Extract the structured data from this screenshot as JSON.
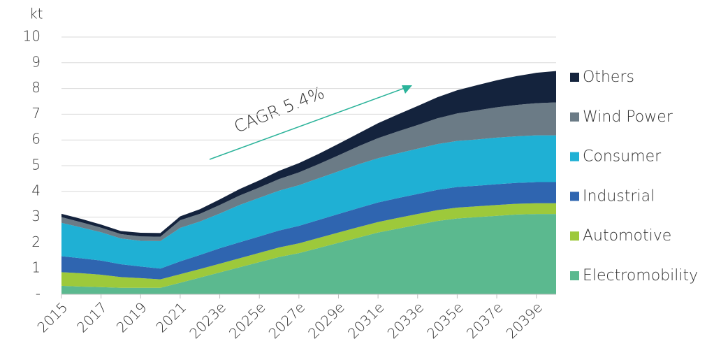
{
  "chart_data": {
    "type": "stacked_area",
    "y_label": "kt",
    "annotation": "CAGR 5.4%",
    "categories": [
      "2015",
      null,
      "2017",
      null,
      "2019",
      null,
      "2021",
      null,
      "2023e",
      null,
      "2025e",
      null,
      "2027e",
      null,
      "2029e",
      null,
      "2031e",
      null,
      "2033e",
      null,
      "2035e",
      null,
      "2037e",
      null,
      "2039e",
      null
    ],
    "series": [
      {
        "name": "Electromobility",
        "color": "#5bb98f",
        "values": [
          0.33,
          0.3,
          0.28,
          0.25,
          0.25,
          0.25,
          0.45,
          0.65,
          0.85,
          1.05,
          1.25,
          1.45,
          1.6,
          1.8,
          2.0,
          2.2,
          2.4,
          2.55,
          2.7,
          2.85,
          2.95,
          3.0,
          3.05,
          3.1,
          3.12,
          3.12
        ]
      },
      {
        "name": "Automotive",
        "color": "#9dc93b",
        "values": [
          0.53,
          0.52,
          0.48,
          0.42,
          0.38,
          0.33,
          0.33,
          0.33,
          0.34,
          0.35,
          0.36,
          0.37,
          0.38,
          0.39,
          0.4,
          0.41,
          0.41,
          0.42,
          0.42,
          0.42,
          0.42,
          0.42,
          0.42,
          0.42,
          0.42,
          0.42
        ]
      },
      {
        "name": "Industrial",
        "color": "#2f65b0",
        "values": [
          0.62,
          0.58,
          0.55,
          0.5,
          0.45,
          0.42,
          0.5,
          0.55,
          0.6,
          0.62,
          0.64,
          0.66,
          0.68,
          0.7,
          0.72,
          0.74,
          0.76,
          0.77,
          0.78,
          0.79,
          0.8,
          0.8,
          0.81,
          0.81,
          0.82,
          0.82
        ]
      },
      {
        "name": "Consumer",
        "color": "#1fb0d4",
        "values": [
          1.3,
          1.2,
          1.1,
          1.0,
          1.0,
          1.07,
          1.3,
          1.3,
          1.35,
          1.45,
          1.5,
          1.55,
          1.58,
          1.62,
          1.66,
          1.7,
          1.72,
          1.74,
          1.76,
          1.78,
          1.79,
          1.8,
          1.81,
          1.81,
          1.82,
          1.82
        ]
      },
      {
        "name": "Wind Power",
        "color": "#6b7b86",
        "values": [
          0.22,
          0.2,
          0.18,
          0.17,
          0.17,
          0.17,
          0.3,
          0.3,
          0.33,
          0.37,
          0.4,
          0.45,
          0.5,
          0.55,
          0.62,
          0.7,
          0.78,
          0.85,
          0.92,
          1.0,
          1.07,
          1.13,
          1.18,
          1.22,
          1.25,
          1.28
        ]
      },
      {
        "name": "Others",
        "color": "#14233d",
        "values": [
          0.13,
          0.13,
          0.12,
          0.12,
          0.14,
          0.14,
          0.15,
          0.18,
          0.22,
          0.25,
          0.28,
          0.32,
          0.36,
          0.4,
          0.45,
          0.5,
          0.58,
          0.66,
          0.74,
          0.82,
          0.9,
          0.98,
          1.05,
          1.12,
          1.18,
          1.22
        ]
      }
    ],
    "ylim": [
      0,
      10
    ],
    "yticks": [
      {
        "value": 0,
        "label": "-"
      },
      1,
      2,
      3,
      4,
      5,
      6,
      7,
      8,
      9,
      10
    ],
    "grid": true,
    "legend": "right"
  }
}
